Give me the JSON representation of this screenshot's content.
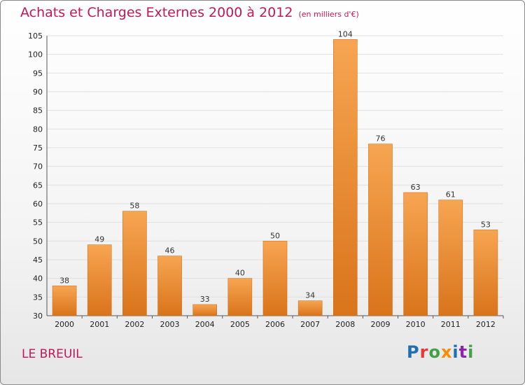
{
  "header": {
    "title": "Achats et Charges Externes 2000 à 2012",
    "subtitle": "(en milliers d'€)"
  },
  "footer": {
    "commune": "LE BREUIL",
    "logo_letters": [
      "P",
      "r",
      "o",
      "x",
      "i",
      "t",
      "i"
    ]
  },
  "colors": {
    "bar_light": "#f7a552",
    "bar_dark": "#d9741a",
    "title": "#c2185b",
    "grid": "#e0e0e0"
  },
  "chart_data": {
    "type": "bar",
    "title": "Achats et Charges Externes 2000 à 2012",
    "subtitle": "(en milliers d'€)",
    "xlabel": "",
    "ylabel": "",
    "categories": [
      "2000",
      "2001",
      "2002",
      "2003",
      "2004",
      "2005",
      "2006",
      "2007",
      "2008",
      "2009",
      "2010",
      "2011",
      "2012"
    ],
    "values": [
      38,
      49,
      58,
      46,
      33,
      40,
      50,
      34,
      104,
      76,
      63,
      61,
      53
    ],
    "ylim": [
      30,
      105
    ],
    "yticks": [
      30,
      35,
      40,
      45,
      50,
      55,
      60,
      65,
      70,
      75,
      80,
      85,
      90,
      95,
      100,
      105
    ],
    "grid": true,
    "legend": "none"
  }
}
